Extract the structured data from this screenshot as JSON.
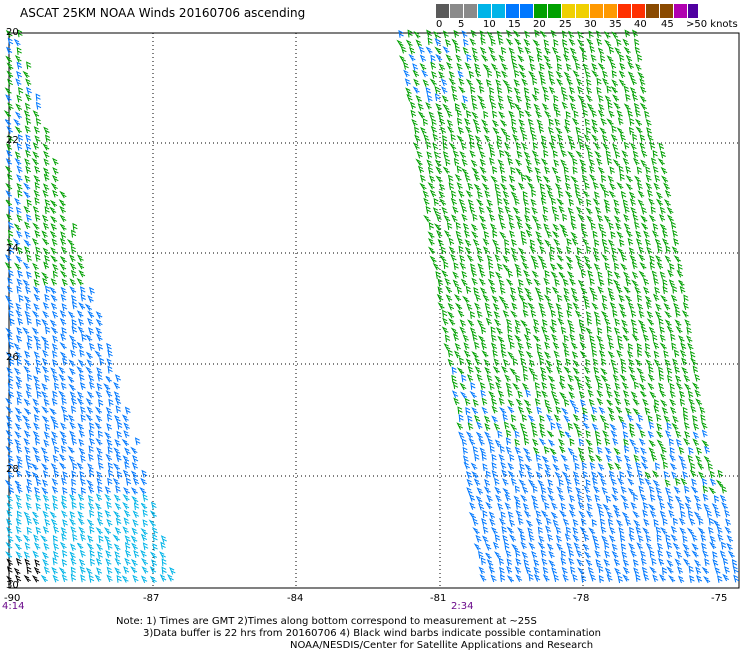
{
  "title": "ASCAT 25KM NOAA Winds 20160706 ascending",
  "legend": {
    "labels": [
      "0",
      "5",
      "10",
      "15",
      "20",
      "25",
      "30",
      "35",
      "40",
      "45",
      ">50 knots"
    ],
    "colors": [
      "#5a5a5a",
      "#8a8a8a",
      "#00b4e8",
      "#0078ff",
      "#00a000",
      "#f0d000",
      "#ff9900",
      "#ff3000",
      "#8a4a00",
      "#b000b0",
      "#5000a0"
    ]
  },
  "axes": {
    "lat_labels": [
      "20",
      "22",
      "24",
      "26",
      "28",
      "30"
    ],
    "lon_labels": [
      "-90",
      "-87",
      "-84",
      "-81",
      "-78",
      "-75"
    ]
  },
  "swaths": [
    {
      "time": "4:14"
    },
    {
      "time": "2:34"
    }
  ],
  "notes": [
    "Note: 1) Times are GMT 2)Times along bottom correspond to measurement at ~25S",
    "3)Data buffer is 22 hrs from 20160706 4) Black wind barbs indicate possible contamination",
    "NOAA/NESDIS/Center for Satellite Applications and Research"
  ]
}
